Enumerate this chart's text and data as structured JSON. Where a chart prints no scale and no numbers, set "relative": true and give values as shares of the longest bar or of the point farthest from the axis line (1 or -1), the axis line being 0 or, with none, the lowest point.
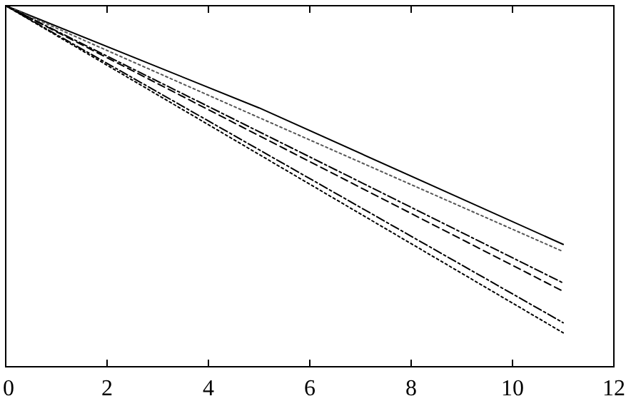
{
  "chart_data": {
    "type": "line",
    "relative": true,
    "xlim": [
      0,
      12
    ],
    "xticks": [
      0,
      2,
      4,
      6,
      8,
      10,
      12
    ],
    "series": [
      {
        "color": "#000000",
        "line_style": "solid",
        "x": [
          0,
          5,
          11
        ],
        "values": [
          1,
          0.717,
          0.339
        ]
      },
      {
        "color": "#555555",
        "line_style": "dotted",
        "x": [
          0,
          5,
          11
        ],
        "values": [
          1,
          0.69,
          0.319
        ]
      },
      {
        "color": "#000000",
        "line_style": "dashdot",
        "x": [
          0,
          5,
          11
        ],
        "values": [
          1,
          0.651,
          0.232
        ]
      },
      {
        "color": "#000000",
        "line_style": "dashed",
        "x": [
          0,
          5,
          11
        ],
        "values": [
          1,
          0.64,
          0.209
        ]
      },
      {
        "color": "#000000",
        "line_style": "dashdot",
        "x": [
          0,
          5,
          11
        ],
        "values": [
          1,
          0.601,
          0.122
        ]
      },
      {
        "color": "#000000",
        "line_style": "dotted",
        "x": [
          0,
          5,
          11
        ],
        "values": [
          1,
          0.588,
          0.094
        ]
      }
    ]
  }
}
